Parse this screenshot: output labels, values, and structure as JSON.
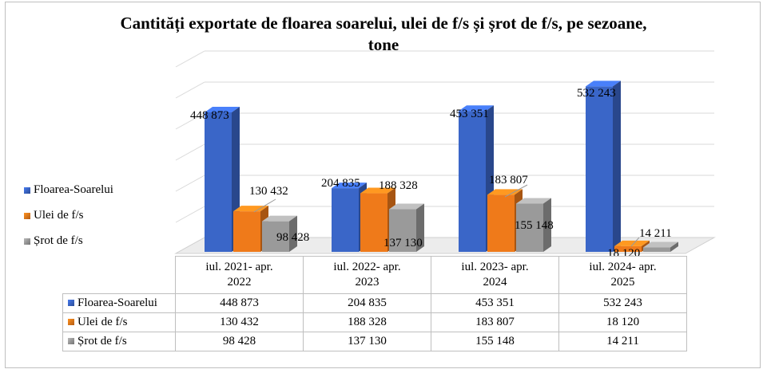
{
  "chart_data": {
    "type": "bar",
    "title": "Cantități exportate de floarea soarelui, ulei de f/s și șrot de f/s, pe sezoane, tone",
    "categories": [
      [
        "iul. 2021- apr.",
        "2022"
      ],
      [
        "iul. 2022- apr.",
        "2023"
      ],
      [
        "iul. 2023- apr.",
        "2024"
      ],
      [
        "iul. 2024- apr.",
        "2025"
      ]
    ],
    "series": [
      {
        "name": "Floarea-Soarelui",
        "color": "#3a66c8",
        "values": [
          448873,
          204835,
          453351,
          532243
        ],
        "labels": [
          "448 873",
          "204 835",
          "453 351",
          "532 243"
        ]
      },
      {
        "name": "Ulei de f/s",
        "color": "#ef7a1a",
        "values": [
          130432,
          188328,
          183807,
          18120
        ],
        "labels": [
          "130 432",
          "188 328",
          "183 807",
          "18 120"
        ]
      },
      {
        "name": "Șrot de f/s",
        "color": "#9a9a9a",
        "values": [
          98428,
          137130,
          155148,
          14211
        ],
        "labels": [
          "98 428",
          "137 130",
          "155 148",
          "14 211"
        ]
      }
    ],
    "ylim": [
      0,
      600000
    ],
    "grid": true,
    "legend": "left"
  }
}
